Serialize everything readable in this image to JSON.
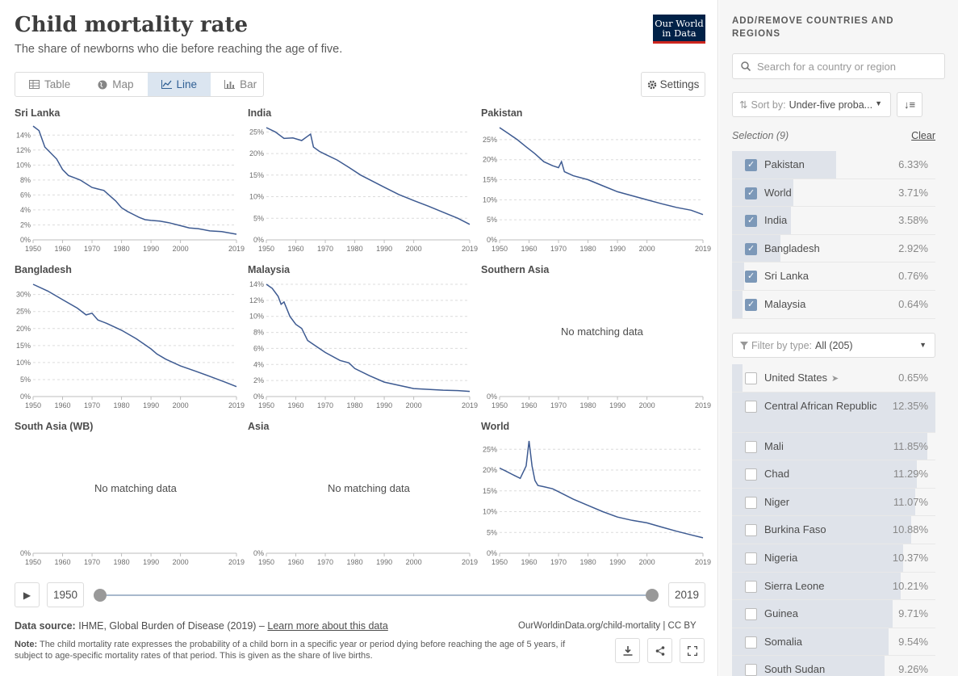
{
  "header": {
    "title": "Child mortality rate",
    "subtitle": "The share of newborns who die before reaching the age of five.",
    "logo_line1": "Our World",
    "logo_line2": "in Data"
  },
  "tabs": [
    {
      "label": "Table",
      "icon": "table-icon",
      "active": false
    },
    {
      "label": "Map",
      "icon": "globe-icon",
      "active": false
    },
    {
      "label": "Line",
      "icon": "line-chart-icon",
      "active": true
    },
    {
      "label": "Bar",
      "icon": "bar-chart-icon",
      "active": false
    }
  ],
  "settings_label": "Settings",
  "no_data_text": "No matching data",
  "chart_data": [
    {
      "type": "line",
      "title": "Sri Lanka",
      "x": [
        1950,
        1952,
        1954,
        1956,
        1958,
        1960,
        1962,
        1964,
        1966,
        1968,
        1970,
        1972,
        1974,
        1976,
        1978,
        1980,
        1982,
        1984,
        1986,
        1988,
        1990,
        1993,
        1996,
        2000,
        2003,
        2006,
        2010,
        2014,
        2019
      ],
      "y": [
        15.2,
        14.6,
        12.4,
        11.6,
        10.8,
        9.4,
        8.6,
        8.3,
        8.0,
        7.5,
        7.0,
        6.8,
        6.6,
        5.9,
        5.2,
        4.3,
        3.8,
        3.4,
        3.0,
        2.7,
        2.6,
        2.5,
        2.3,
        1.9,
        1.6,
        1.5,
        1.2,
        1.1,
        0.76
      ],
      "yticks": [
        "0%",
        "2%",
        "4%",
        "6%",
        "8%",
        "10%",
        "12%",
        "14%"
      ],
      "ylim": [
        0,
        15
      ],
      "xticks": [
        "1950",
        "1960",
        "1970",
        "1980",
        "1990",
        "2000",
        "2019"
      ]
    },
    {
      "type": "line",
      "title": "India",
      "x": [
        1950,
        1953,
        1956,
        1959,
        1962,
        1964,
        1965,
        1966,
        1968,
        1970,
        1974,
        1978,
        1982,
        1986,
        1990,
        1995,
        2000,
        2005,
        2010,
        2015,
        2019
      ],
      "y": [
        26,
        25,
        23.5,
        23.6,
        23,
        24,
        24.5,
        21.5,
        20.5,
        19.8,
        18.5,
        16.8,
        15,
        13.6,
        12.2,
        10.5,
        9.1,
        7.8,
        6.4,
        5,
        3.6
      ],
      "yticks": [
        "0%",
        "5%",
        "10%",
        "15%",
        "20%",
        "25%"
      ],
      "ylim": [
        0,
        26
      ],
      "xticks": [
        "1950",
        "1960",
        "1970",
        "1980",
        "1990",
        "2000",
        "2019"
      ]
    },
    {
      "type": "line",
      "title": "Pakistan",
      "x": [
        1950,
        1953,
        1956,
        1959,
        1962,
        1965,
        1968,
        1970,
        1971,
        1972,
        1975,
        1980,
        1985,
        1990,
        1995,
        2000,
        2005,
        2010,
        2015,
        2019
      ],
      "y": [
        28,
        26.5,
        25,
        23.2,
        21.5,
        19.5,
        18.5,
        18,
        19.5,
        17,
        16,
        15,
        13.5,
        12,
        11,
        10,
        9,
        8.1,
        7.4,
        6.3
      ],
      "yticks": [
        "0%",
        "5%",
        "10%",
        "15%",
        "20%",
        "25%"
      ],
      "ylim": [
        0,
        28
      ],
      "xticks": [
        "1950",
        "1960",
        "1970",
        "1980",
        "1990",
        "2000",
        "2019"
      ]
    },
    {
      "type": "line",
      "title": "Bangladesh",
      "x": [
        1950,
        1955,
        1960,
        1965,
        1968,
        1970,
        1972,
        1975,
        1980,
        1985,
        1990,
        1992,
        1995,
        2000,
        2005,
        2010,
        2015,
        2019
      ],
      "y": [
        33,
        31,
        28.5,
        26,
        24,
        24.5,
        22.5,
        21.5,
        19.5,
        17,
        14,
        12.5,
        11,
        9,
        7.5,
        5.9,
        4.3,
        2.92
      ],
      "yticks": [
        "0%",
        "5%",
        "10%",
        "15%",
        "20%",
        "25%",
        "30%"
      ],
      "ylim": [
        0,
        33
      ],
      "xticks": [
        "1950",
        "1960",
        "1970",
        "1980",
        "1990",
        "2000",
        "2019"
      ]
    },
    {
      "type": "line",
      "title": "Malaysia",
      "x": [
        1950,
        1952,
        1954,
        1955,
        1956,
        1958,
        1960,
        1962,
        1964,
        1966,
        1970,
        1975,
        1978,
        1980,
        1985,
        1990,
        1995,
        2000,
        2005,
        2010,
        2015,
        2019
      ],
      "y": [
        14,
        13.5,
        12.5,
        11.5,
        11.8,
        10,
        9,
        8.5,
        7,
        6.5,
        5.5,
        4.5,
        4.2,
        3.5,
        2.6,
        1.8,
        1.4,
        1.0,
        0.9,
        0.8,
        0.75,
        0.64
      ],
      "yticks": [
        "0%",
        "2%",
        "4%",
        "6%",
        "8%",
        "10%",
        "12%",
        "14%"
      ],
      "ylim": [
        0,
        14
      ],
      "xticks": [
        "1950",
        "1960",
        "1970",
        "1980",
        "1990",
        "2000",
        "2019"
      ]
    },
    {
      "type": "line",
      "title": "Southern Asia",
      "nodata": true,
      "yticks": [
        "0%"
      ],
      "xticks": [
        "1950",
        "1960",
        "1970",
        "1980",
        "1990",
        "2000",
        "2019"
      ]
    },
    {
      "type": "line",
      "title": "South Asia (WB)",
      "nodata": true,
      "yticks": [
        "0%"
      ],
      "xticks": [
        "1950",
        "1960",
        "1970",
        "1980",
        "1990",
        "2000",
        "2019"
      ]
    },
    {
      "type": "line",
      "title": "Asia",
      "nodata": true,
      "yticks": [
        "0%"
      ],
      "xticks": [
        "1950",
        "1960",
        "1970",
        "1980",
        "1990",
        "2000",
        "2019"
      ]
    },
    {
      "type": "line",
      "title": "World",
      "x": [
        1950,
        1952,
        1955,
        1957,
        1959,
        1960,
        1961,
        1962,
        1963,
        1965,
        1968,
        1970,
        1975,
        1980,
        1985,
        1990,
        1995,
        2000,
        2005,
        2010,
        2015,
        2019
      ],
      "y": [
        20.5,
        19.8,
        18.7,
        18,
        21,
        27,
        21,
        17.5,
        16.3,
        16,
        15.5,
        14.8,
        13,
        11.5,
        10,
        8.7,
        7.9,
        7.3,
        6.3,
        5.3,
        4.4,
        3.71
      ],
      "yticks": [
        "0%",
        "5%",
        "10%",
        "15%",
        "20%",
        "25%"
      ],
      "ylim": [
        0,
        27
      ],
      "xticks": [
        "1950",
        "1960",
        "1970",
        "1980",
        "1990",
        "2000",
        "2019"
      ]
    }
  ],
  "timeline": {
    "start": "1950",
    "end": "2019"
  },
  "footer": {
    "source_label": "Data source:",
    "source_text": "IHME, Global Burden of Disease (2019) –",
    "learn_more": "Learn more about this data",
    "url": "OurWorldinData.org/child-mortality | CC BY",
    "note_label": "Note:",
    "note_text": "The child mortality rate expresses the probability of a child born in a specific year or period dying before reaching the age of 5 years, if subject to age-specific mortality rates of that period. This is given as the share of live births."
  },
  "sidebar": {
    "heading": "ADD/REMOVE COUNTRIES AND REGIONS",
    "search_placeholder": "Search for a country or region",
    "sort_label": "Sort by:",
    "sort_value": "Under-five proba...",
    "selection_label": "Selection (9)",
    "clear_label": "Clear",
    "selected": [
      {
        "name": "Pakistan",
        "value": "6.33%",
        "frac": 0.51
      },
      {
        "name": "World",
        "value": "3.71%",
        "frac": 0.3
      },
      {
        "name": "India",
        "value": "3.58%",
        "frac": 0.29
      },
      {
        "name": "Bangladesh",
        "value": "2.92%",
        "frac": 0.24
      },
      {
        "name": "Sri Lanka",
        "value": "0.76%",
        "frac": 0.06
      },
      {
        "name": "Malaysia",
        "value": "0.64%",
        "frac": 0.05
      }
    ],
    "filter_label": "Filter by type:",
    "filter_value": "All (205)",
    "others": [
      {
        "name": "United States",
        "value": "0.65%",
        "frac": 0.05,
        "locate": true
      },
      {
        "name": "Central African Republic",
        "value": "12.35%",
        "frac": 1.0
      },
      {
        "name": "Mali",
        "value": "11.85%",
        "frac": 0.96
      },
      {
        "name": "Chad",
        "value": "11.29%",
        "frac": 0.91
      },
      {
        "name": "Niger",
        "value": "11.07%",
        "frac": 0.9
      },
      {
        "name": "Burkina Faso",
        "value": "10.88%",
        "frac": 0.88
      },
      {
        "name": "Nigeria",
        "value": "10.37%",
        "frac": 0.84
      },
      {
        "name": "Sierra Leone",
        "value": "10.21%",
        "frac": 0.83
      },
      {
        "name": "Guinea",
        "value": "9.71%",
        "frac": 0.79
      },
      {
        "name": "Somalia",
        "value": "9.54%",
        "frac": 0.77
      },
      {
        "name": "South Sudan",
        "value": "9.26%",
        "frac": 0.75
      }
    ]
  },
  "colors": {
    "line": "#3d5a91",
    "accent": "#2f5f94",
    "logo_bg": "#002147",
    "logo_red": "#ce261e"
  }
}
